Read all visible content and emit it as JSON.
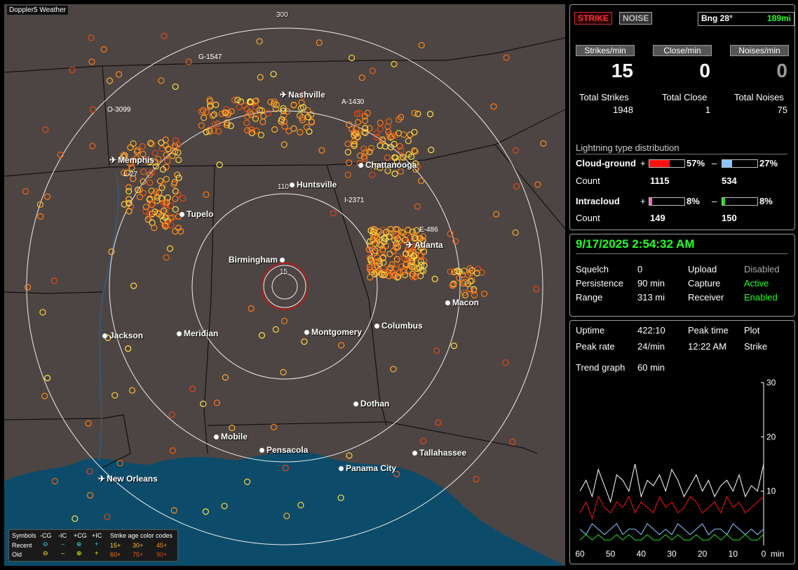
{
  "map": {
    "title": "Doppler5 Weather",
    "ring_labels": [
      "300",
      "110",
      "15"
    ],
    "cities": [
      {
        "name": "Nashville",
        "type": "plane"
      },
      {
        "name": "Memphis",
        "type": "plane"
      },
      {
        "name": "Chattanooga",
        "type": "dot"
      },
      {
        "name": "Huntsville",
        "type": "dot"
      },
      {
        "name": "Tupelo",
        "type": "dot"
      },
      {
        "name": "Atlanta",
        "type": "plane"
      },
      {
        "name": "Birmingham",
        "type": "dot"
      },
      {
        "name": "Macon",
        "type": "dot"
      },
      {
        "name": "Jackson",
        "type": "dot"
      },
      {
        "name": "Meridian",
        "type": "dot"
      },
      {
        "name": "Montgomery",
        "type": "dot"
      },
      {
        "name": "Columbus",
        "type": "dot"
      },
      {
        "name": "Dothan",
        "type": "dot"
      },
      {
        "name": "Mobile",
        "type": "dot"
      },
      {
        "name": "Pensacola",
        "type": "dot"
      },
      {
        "name": "Tallahassee",
        "type": "dot"
      },
      {
        "name": "Panama City",
        "type": "dot"
      },
      {
        "name": "New Orleans",
        "type": "plane"
      }
    ],
    "grid_labels": [
      "G-1547",
      "O-3099",
      "A-1430",
      "L-27",
      "I-2371",
      "E-486"
    ],
    "legend": {
      "symbols_label": "Symbols",
      "col_headers": [
        "-CG",
        "-IC",
        "+CG",
        "+IC"
      ],
      "recent_label": "Recent",
      "old_label": "Old",
      "age_title": "Strike age color codes",
      "recent_ages": [
        "15+",
        "30+",
        "45+"
      ],
      "old_ages": [
        "60+",
        "75+",
        "90+"
      ]
    }
  },
  "panel_top": {
    "strike_btn": "STRIKE",
    "noise_btn": "NOISE",
    "bearing": "Bng 28°",
    "distance": "189mi",
    "hdr_strikes": "Strikes/min",
    "hdr_close": "Close/min",
    "hdr_noises": "Noises/min",
    "strikes_min": "15",
    "close_min": "0",
    "noises_min": "0",
    "total_strikes_label": "Total Strikes",
    "total_close_label": "Total Close",
    "total_noises_label": "Total Noises",
    "total_strikes": "1948",
    "total_close": "1",
    "total_noises": "75",
    "dist_title": "Lightning type distribution",
    "cg_label": "Cloud-ground",
    "ic_label": "Intracloud",
    "count_label": "Count",
    "plus": "+",
    "minus": "–",
    "cg_pos_pct": "57%",
    "cg_neg_pct": "27%",
    "ic_pos_pct": "8%",
    "ic_neg_pct": "8%",
    "cg_pos_frac": 0.57,
    "cg_neg_frac": 0.27,
    "ic_pos_frac": 0.08,
    "ic_neg_frac": 0.08,
    "cg_pos_count": "1115",
    "cg_neg_count": "534",
    "ic_pos_count": "149",
    "ic_neg_count": "150",
    "colors": {
      "cg_pos": "#ff1010",
      "cg_neg": "#8cc4ff",
      "ic_pos": "#ff66c4",
      "ic_neg": "#22dd22"
    }
  },
  "panel_mid": {
    "datetime": "9/17/2025 2:54:32 AM",
    "squelch_label": "Squelch",
    "squelch": "0",
    "persistence_label": "Persistence",
    "persistence": "90 min",
    "range_label": "Range",
    "range": "313 mi",
    "upload_label": "Upload",
    "upload": "Disabled",
    "capture_label": "Capture",
    "capture": "Active",
    "receiver_label": "Receiver",
    "receiver": "Enabled"
  },
  "panel_bot": {
    "uptime_label": "Uptime",
    "uptime": "422:10",
    "peak_time_label": "Peak time",
    "plot_label": "Plot",
    "peak_rate_label": "Peak rate",
    "peak_rate": "24/min",
    "peak_time": "12:22 AM",
    "plot": "Strike",
    "trend_label": "Trend graph",
    "trend": "60 min",
    "y_ticks": [
      "30",
      "20",
      "10"
    ],
    "x_ticks": [
      "60",
      "50",
      "40",
      "30",
      "20",
      "10",
      "0"
    ],
    "x_unit": "min"
  },
  "chart_data": {
    "type": "line",
    "title": "",
    "xlabel": "min",
    "ylabel": "",
    "x": [
      60,
      58,
      56,
      54,
      52,
      50,
      48,
      46,
      44,
      42,
      40,
      38,
      36,
      34,
      32,
      30,
      28,
      26,
      24,
      22,
      20,
      18,
      16,
      14,
      12,
      10,
      8,
      6,
      4,
      2,
      0
    ],
    "ylim": [
      0,
      30
    ],
    "series": [
      {
        "values": [
          10,
          12,
          9,
          14,
          11,
          8,
          13,
          12,
          10,
          15,
          9,
          12,
          11,
          13,
          10,
          14,
          12,
          9,
          11,
          13,
          10,
          12,
          9,
          11,
          12,
          10,
          13,
          9,
          11,
          10,
          15
        ]
      },
      {
        "values": [
          6,
          8,
          5,
          9,
          7,
          6,
          8,
          7,
          9,
          6,
          8,
          7,
          6,
          9,
          7,
          8,
          6,
          7,
          9,
          8,
          6,
          7,
          8,
          6,
          9,
          7,
          8,
          6,
          7,
          8,
          9
        ]
      },
      {
        "values": [
          3,
          2,
          4,
          3,
          2,
          3,
          4,
          2,
          3,
          3,
          2,
          4,
          3,
          2,
          3,
          2,
          4,
          3,
          2,
          3,
          4,
          2,
          3,
          3,
          2,
          4,
          3,
          2,
          3,
          2,
          3
        ]
      },
      {
        "values": [
          1,
          2,
          1,
          2,
          1,
          1,
          2,
          1,
          2,
          1,
          1,
          2,
          1,
          1,
          2,
          1,
          2,
          1,
          1,
          2,
          1,
          1,
          2,
          1,
          2,
          1,
          1,
          2,
          1,
          1,
          2
        ]
      }
    ]
  }
}
